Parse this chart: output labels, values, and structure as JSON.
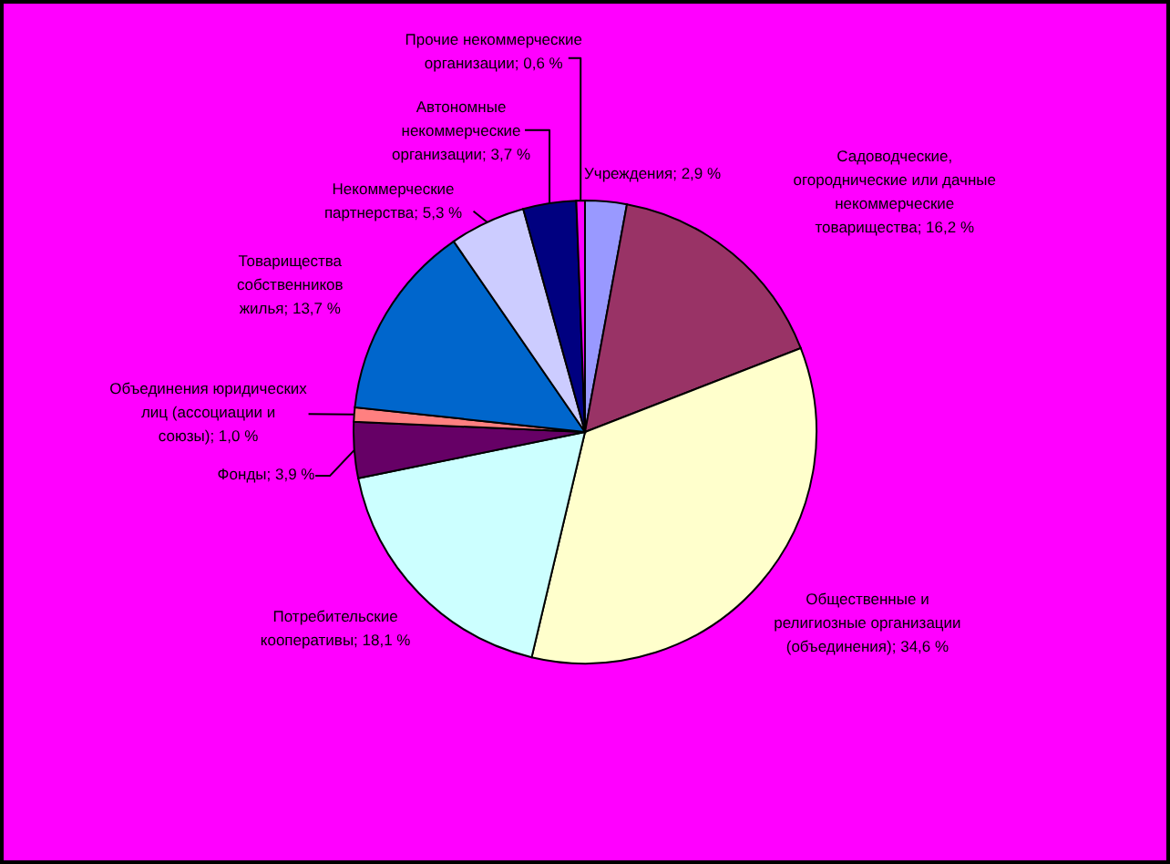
{
  "chart_data": {
    "type": "pie",
    "categories": [
      "Учреждения",
      "Садоводческие, огороднические или дачные некоммерческие товарищества",
      "Общественные и религиозные организации (объединения)",
      "Потребительские кооперативы",
      "Фонды",
      "Объединения юридических лиц (ассоциации и союзы)",
      "Товарищества собственников жилья",
      "Некоммерческие партнерства",
      "Автономные некоммерческие организации",
      "Прочие некоммерческие организации"
    ],
    "values": [
      2.9,
      16.2,
      34.6,
      18.1,
      3.9,
      1.0,
      13.7,
      5.3,
      3.7,
      0.6
    ],
    "colors": [
      "#9999ff",
      "#993366",
      "#ffffcc",
      "#ccffff",
      "#660066",
      "#ff8080",
      "#0066cc",
      "#ccccff",
      "#000080",
      "#ff00ff"
    ],
    "value_labels": [
      "2,9 %",
      "16,2 %",
      "34,6 %",
      "18,1 %",
      "3,9 %",
      "1,0 %",
      "13,7 %",
      "5,3 %",
      "3,7 %",
      "0,6 %"
    ]
  }
}
